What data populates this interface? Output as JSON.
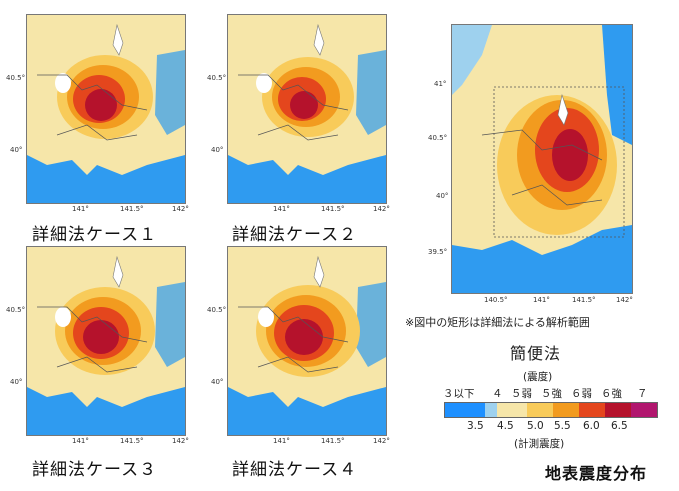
{
  "panels": [
    {
      "label": "詳細法ケース１",
      "lat_ticks": [
        "40.5°",
        "40°"
      ],
      "lon_ticks": [
        "141°",
        "141.5°",
        "142°"
      ]
    },
    {
      "label": "詳細法ケース２",
      "lat_ticks": [
        "40.5°",
        "40°"
      ],
      "lon_ticks": [
        "141°",
        "141.5°",
        "142°"
      ]
    },
    {
      "label": "詳細法ケース３",
      "lat_ticks": [
        "40.5°",
        "40°"
      ],
      "lon_ticks": [
        "141°",
        "141.5°",
        "142°"
      ]
    },
    {
      "label": "詳細法ケース４",
      "lat_ticks": [
        "40.5°",
        "40°"
      ],
      "lon_ticks": [
        "141°",
        "141.5°",
        "142°"
      ]
    }
  ],
  "large_map": {
    "lat_ticks": [
      "41°",
      "40.5°",
      "40°",
      "39.5°"
    ],
    "lon_ticks": [
      "140.5°",
      "141°",
      "141.5°",
      "142°"
    ],
    "note": "※図中の矩形は詳細法による解析範囲",
    "title": "簡便法"
  },
  "legend": {
    "top_caption": "(震度)",
    "intensity_labels": [
      "３以下",
      "４",
      "５弱",
      "５強",
      "６弱",
      "６強",
      "７"
    ],
    "value_labels": [
      "3.5",
      "4.5",
      "5.0",
      "5.5",
      "6.0",
      "6.5"
    ],
    "bottom_caption": "(計測震度)",
    "colors": [
      "#1e90ff",
      "#9ed1ee",
      "#f6e6a9",
      "#f8cb5a",
      "#f29b1f",
      "#e4461d",
      "#b5122c",
      "#b1166e"
    ]
  },
  "footer_title": "地表震度分布"
}
